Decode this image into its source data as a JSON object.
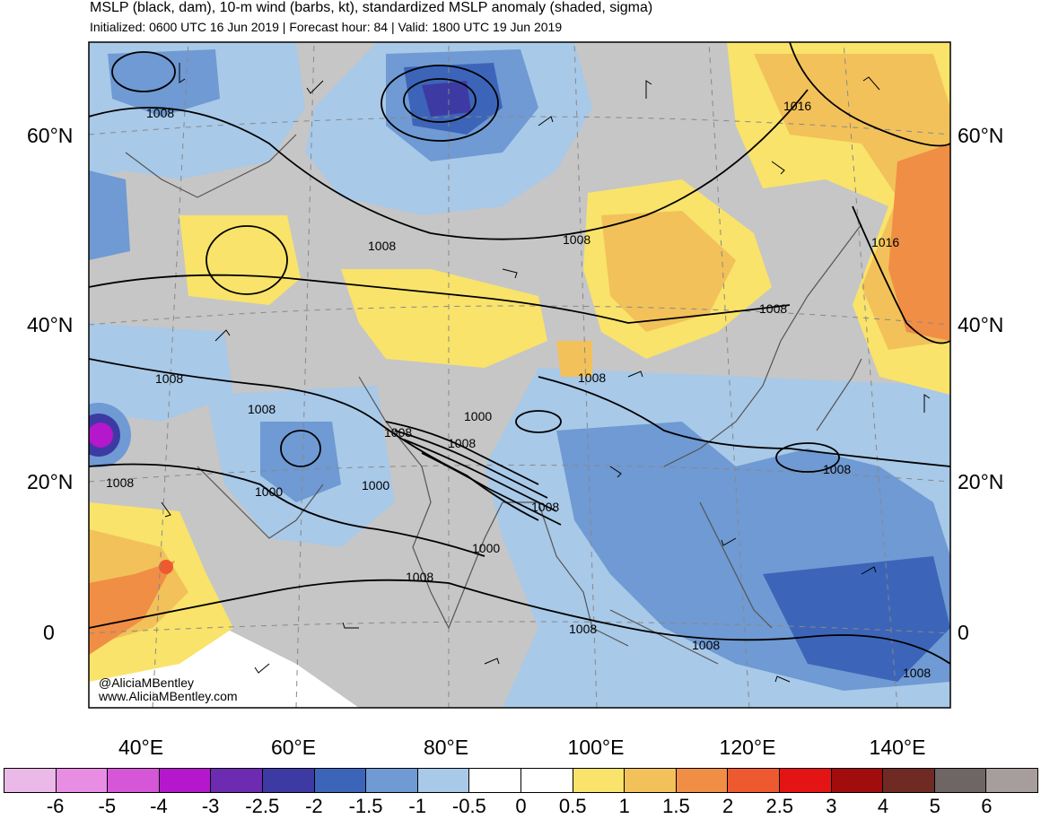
{
  "header": {
    "title": "MSLP (black, dam), 10-m wind (barbs, kt), standardized MSLP anomaly (shaded, sigma)",
    "subtitle": "Initialized: 0600 UTC 16 Jun 2019 | Forecast hour: 84 | Valid: 1800 UTC 19 Jun 2019"
  },
  "axes": {
    "lat_labels": [
      "60°N",
      "40°N",
      "20°N",
      "0"
    ],
    "lon_labels": [
      "40°E",
      "60°E",
      "80°E",
      "100°E",
      "120°E",
      "140°E"
    ]
  },
  "credit": {
    "line1": "@AliciaMBentley",
    "line2": "www.AliciaMBentley.com"
  },
  "contour_labels": [
    "1008",
    "1016",
    "1008",
    "1008",
    "1016",
    "1008",
    "1008",
    "1008",
    "1008",
    "1000",
    "1008",
    "1008",
    "1008",
    "1000",
    "1000",
    "1008",
    "1000",
    "1008",
    "1008",
    "1008",
    "1008",
    "1008"
  ],
  "colorbar": {
    "labels": [
      "-6",
      "-5",
      "-4",
      "-3",
      "-2.5",
      "-2",
      "-1.5",
      "-1",
      "-0.5",
      "0",
      "0.5",
      "1",
      "1.5",
      "2",
      "2.5",
      "3",
      "4",
      "5",
      "6"
    ],
    "colors": [
      "#eab9e8",
      "#e88de4",
      "#d656d8",
      "#b417cc",
      "#6c2bb0",
      "#3e3aa3",
      "#3c65b9",
      "#6f9ad3",
      "#a8c9e8",
      "#ffffff",
      "#ffffff",
      "#f9e36a",
      "#f2c15a",
      "#f08e45",
      "#ee5a30",
      "#e41414",
      "#a10c0c",
      "#702a24",
      "#6f6565",
      "#a89d9d"
    ]
  },
  "colors": {
    "land_gray": "#c6c6c6",
    "contour": "#000000"
  }
}
